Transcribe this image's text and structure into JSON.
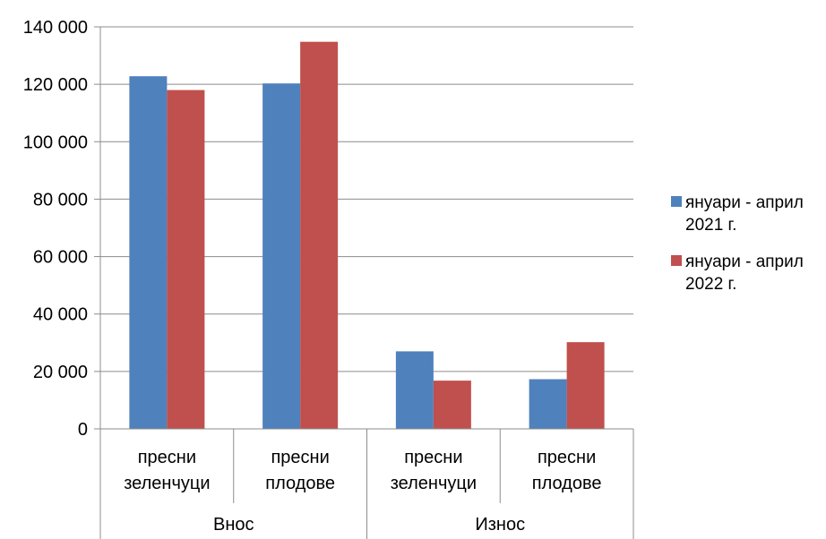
{
  "chart_data": {
    "type": "bar",
    "categories": [
      {
        "line1": "пресни",
        "line2": "зеленчуци"
      },
      {
        "line1": "пресни",
        "line2": "плодове"
      },
      {
        "line1": "пресни",
        "line2": "зеленчуци"
      },
      {
        "line1": "пресни",
        "line2": "плодове"
      }
    ],
    "groups": [
      {
        "label": "Внос",
        "categories": [
          0,
          1
        ]
      },
      {
        "label": "Износ",
        "categories": [
          2,
          3
        ]
      }
    ],
    "series": [
      {
        "name_line1": "януари - април",
        "name_line2": "2021 г.",
        "color": "#4F81BD",
        "values": [
          122800,
          120300,
          27000,
          17300
        ]
      },
      {
        "name_line1": "януари - април",
        "name_line2": "2022 г.",
        "color": "#C0504D",
        "values": [
          118000,
          134800,
          16800,
          30200
        ]
      }
    ],
    "ylim": [
      0,
      140000
    ],
    "yticks": [
      0,
      20000,
      40000,
      60000,
      80000,
      100000,
      120000,
      140000
    ],
    "ytick_labels": [
      "0",
      "20 000",
      "40 000",
      "60 000",
      "80 000",
      "100 000",
      "120 000",
      "140 000"
    ],
    "grid": true,
    "legend_position": "right"
  }
}
